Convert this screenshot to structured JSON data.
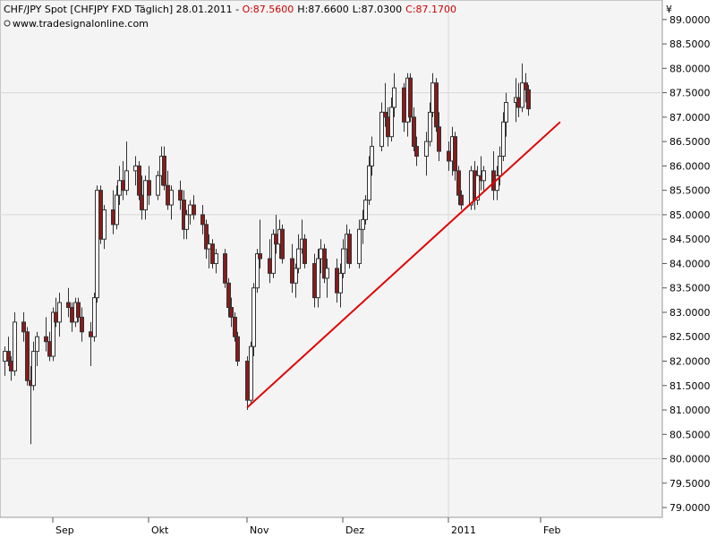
{
  "header": {
    "title_main": "CHF/JPY Spot [CHFJPY FXD  Täglich] 28.01.2011 - ",
    "open": "O:87.5600",
    "high": "H:87.6600",
    "low": "L:87.0300",
    "close": "C:87.1700",
    "source": "www.tradesignalonline.com",
    "currency_symbol": "¥"
  },
  "colors": {
    "background": "#ffffff",
    "plot_bg": "#f4f4f4",
    "grid": "#d8d8d8",
    "candle_up": "#ffffff",
    "candle_down": "#8b1a1a",
    "candle_outline": "#333333",
    "trendline": "#e00000",
    "text_red": "#cc0000",
    "text": "#000000"
  },
  "chart_data": {
    "type": "candlestick",
    "ylim": [
      78.8,
      89.4
    ],
    "y_ticks": [
      "79.0000",
      "79.5000",
      "80.0000",
      "80.5000",
      "81.0000",
      "81.5000",
      "82.0000",
      "82.5000",
      "83.0000",
      "83.5000",
      "84.0000",
      "84.5000",
      "85.0000",
      "85.5000",
      "86.0000",
      "86.5000",
      "87.0000",
      "87.5000",
      "88.0000",
      "88.5000",
      "89.0000"
    ],
    "x_labels": [
      {
        "label": "Sep",
        "date": "2010-09-01"
      },
      {
        "label": "Okt",
        "date": "2010-10-01"
      },
      {
        "label": "Nov",
        "date": "2010-11-01"
      },
      {
        "label": "Dez",
        "date": "2010-12-01"
      },
      {
        "label": "2011",
        "date": "2011-01-03"
      },
      {
        "label": "Feb",
        "date": "2011-02-01"
      }
    ],
    "x_range": [
      "2010-08-17",
      "2011-02-16"
    ],
    "v_grid_date": "2011-01-03",
    "h_grid_values": [
      80.0,
      85.0,
      87.5
    ],
    "trendline": {
      "from": {
        "date": "2010-11-01",
        "value": 81.05
      },
      "to": {
        "date": "2011-02-07",
        "value": 86.9
      }
    },
    "candles": [
      {
        "date": "2010-08-17",
        "o": 82.0,
        "h": 82.3,
        "l": 81.7,
        "c": 82.2
      },
      {
        "date": "2010-08-18",
        "o": 82.2,
        "h": 82.5,
        "l": 81.9,
        "c": 82.0
      },
      {
        "date": "2010-08-19",
        "o": 82.0,
        "h": 82.1,
        "l": 81.6,
        "c": 81.8
      },
      {
        "date": "2010-08-20",
        "o": 81.8,
        "h": 83.0,
        "l": 81.7,
        "c": 82.8
      },
      {
        "date": "2010-08-23",
        "o": 82.8,
        "h": 83.0,
        "l": 82.4,
        "c": 82.6
      },
      {
        "date": "2010-08-24",
        "o": 82.6,
        "h": 82.7,
        "l": 81.5,
        "c": 81.6
      },
      {
        "date": "2010-08-25",
        "o": 81.6,
        "h": 81.9,
        "l": 80.3,
        "c": 81.5
      },
      {
        "date": "2010-08-26",
        "o": 81.5,
        "h": 82.4,
        "l": 81.4,
        "c": 82.2
      },
      {
        "date": "2010-08-27",
        "o": 82.2,
        "h": 82.6,
        "l": 81.9,
        "c": 82.5
      },
      {
        "date": "2010-08-30",
        "o": 82.5,
        "h": 82.9,
        "l": 82.2,
        "c": 82.4
      },
      {
        "date": "2010-08-31",
        "o": 82.4,
        "h": 82.6,
        "l": 82.0,
        "c": 82.1
      },
      {
        "date": "2010-09-01",
        "o": 82.1,
        "h": 83.1,
        "l": 82.0,
        "c": 83.0
      },
      {
        "date": "2010-09-02",
        "o": 83.0,
        "h": 83.3,
        "l": 82.7,
        "c": 82.8
      },
      {
        "date": "2010-09-03",
        "o": 82.8,
        "h": 83.4,
        "l": 82.5,
        "c": 83.2
      },
      {
        "date": "2010-09-06",
        "o": 83.2,
        "h": 83.5,
        "l": 82.9,
        "c": 83.1
      },
      {
        "date": "2010-09-07",
        "o": 83.1,
        "h": 83.2,
        "l": 82.6,
        "c": 82.8
      },
      {
        "date": "2010-09-08",
        "o": 82.8,
        "h": 83.3,
        "l": 82.7,
        "c": 83.2
      },
      {
        "date": "2010-09-09",
        "o": 83.2,
        "h": 83.3,
        "l": 82.8,
        "c": 82.9
      },
      {
        "date": "2010-09-10",
        "o": 82.9,
        "h": 83.1,
        "l": 82.4,
        "c": 82.6
      },
      {
        "date": "2010-09-13",
        "o": 82.6,
        "h": 82.8,
        "l": 81.9,
        "c": 82.5
      },
      {
        "date": "2010-09-14",
        "o": 82.5,
        "h": 83.4,
        "l": 82.4,
        "c": 83.3
      },
      {
        "date": "2010-09-15",
        "o": 83.3,
        "h": 85.6,
        "l": 83.2,
        "c": 85.5
      },
      {
        "date": "2010-09-16",
        "o": 85.5,
        "h": 85.6,
        "l": 84.4,
        "c": 84.5
      },
      {
        "date": "2010-09-17",
        "o": 84.5,
        "h": 85.2,
        "l": 84.3,
        "c": 85.1
      },
      {
        "date": "2010-09-20",
        "o": 85.1,
        "h": 85.5,
        "l": 84.6,
        "c": 84.8
      },
      {
        "date": "2010-09-21",
        "o": 84.8,
        "h": 85.6,
        "l": 84.7,
        "c": 85.4
      },
      {
        "date": "2010-09-22",
        "o": 85.4,
        "h": 86.0,
        "l": 85.2,
        "c": 85.7
      },
      {
        "date": "2010-09-23",
        "o": 85.7,
        "h": 86.1,
        "l": 85.3,
        "c": 85.5
      },
      {
        "date": "2010-09-24",
        "o": 85.5,
        "h": 86.5,
        "l": 85.4,
        "c": 85.9
      },
      {
        "date": "2010-09-27",
        "o": 85.9,
        "h": 86.2,
        "l": 85.6,
        "c": 86.0
      },
      {
        "date": "2010-09-28",
        "o": 86.0,
        "h": 86.1,
        "l": 85.3,
        "c": 85.4
      },
      {
        "date": "2010-09-29",
        "o": 85.4,
        "h": 85.8,
        "l": 84.9,
        "c": 85.1
      },
      {
        "date": "2010-09-30",
        "o": 85.1,
        "h": 85.8,
        "l": 84.9,
        "c": 85.7
      },
      {
        "date": "2010-10-01",
        "o": 85.7,
        "h": 86.0,
        "l": 85.2,
        "c": 85.4
      },
      {
        "date": "2010-10-04",
        "o": 85.4,
        "h": 85.9,
        "l": 85.3,
        "c": 85.8
      },
      {
        "date": "2010-10-05",
        "o": 85.8,
        "h": 86.4,
        "l": 85.6,
        "c": 86.2
      },
      {
        "date": "2010-10-06",
        "o": 86.2,
        "h": 86.4,
        "l": 85.5,
        "c": 85.6
      },
      {
        "date": "2010-10-07",
        "o": 85.6,
        "h": 85.9,
        "l": 85.1,
        "c": 85.2
      },
      {
        "date": "2010-10-08",
        "o": 85.2,
        "h": 85.6,
        "l": 84.9,
        "c": 85.5
      },
      {
        "date": "2010-10-11",
        "o": 85.5,
        "h": 85.7,
        "l": 85.1,
        "c": 85.3
      },
      {
        "date": "2010-10-12",
        "o": 85.3,
        "h": 85.5,
        "l": 84.5,
        "c": 84.7
      },
      {
        "date": "2010-10-13",
        "o": 84.7,
        "h": 85.1,
        "l": 84.5,
        "c": 85.0
      },
      {
        "date": "2010-10-14",
        "o": 85.0,
        "h": 85.3,
        "l": 84.8,
        "c": 85.2
      },
      {
        "date": "2010-10-15",
        "o": 85.2,
        "h": 85.4,
        "l": 84.9,
        "c": 85.0
      },
      {
        "date": "2010-10-18",
        "o": 85.0,
        "h": 85.2,
        "l": 84.6,
        "c": 84.8
      },
      {
        "date": "2010-10-19",
        "o": 84.8,
        "h": 84.9,
        "l": 84.1,
        "c": 84.3
      },
      {
        "date": "2010-10-20",
        "o": 84.3,
        "h": 84.6,
        "l": 83.9,
        "c": 84.4
      },
      {
        "date": "2010-10-21",
        "o": 84.4,
        "h": 84.5,
        "l": 83.9,
        "c": 84.0
      },
      {
        "date": "2010-10-22",
        "o": 84.0,
        "h": 84.3,
        "l": 83.8,
        "c": 84.2
      },
      {
        "date": "2010-10-25",
        "o": 84.2,
        "h": 84.3,
        "l": 83.5,
        "c": 83.6
      },
      {
        "date": "2010-10-26",
        "o": 83.6,
        "h": 83.7,
        "l": 82.9,
        "c": 83.1
      },
      {
        "date": "2010-10-27",
        "o": 83.1,
        "h": 83.3,
        "l": 82.7,
        "c": 82.9
      },
      {
        "date": "2010-10-28",
        "o": 82.9,
        "h": 83.0,
        "l": 82.4,
        "c": 82.5
      },
      {
        "date": "2010-10-29",
        "o": 82.5,
        "h": 82.6,
        "l": 81.9,
        "c": 82.0
      },
      {
        "date": "2010-11-01",
        "o": 82.0,
        "h": 82.1,
        "l": 81.0,
        "c": 81.2
      },
      {
        "date": "2010-11-02",
        "o": 81.2,
        "h": 82.4,
        "l": 81.1,
        "c": 82.3
      },
      {
        "date": "2010-11-03",
        "o": 82.3,
        "h": 83.6,
        "l": 82.1,
        "c": 83.5
      },
      {
        "date": "2010-11-04",
        "o": 83.5,
        "h": 84.3,
        "l": 83.4,
        "c": 84.2
      },
      {
        "date": "2010-11-05",
        "o": 84.2,
        "h": 84.9,
        "l": 83.9,
        "c": 84.1
      },
      {
        "date": "2010-11-08",
        "o": 84.1,
        "h": 84.5,
        "l": 83.6,
        "c": 83.8
      },
      {
        "date": "2010-11-09",
        "o": 83.8,
        "h": 84.7,
        "l": 83.7,
        "c": 84.6
      },
      {
        "date": "2010-11-10",
        "o": 84.6,
        "h": 85.0,
        "l": 84.2,
        "c": 84.4
      },
      {
        "date": "2010-11-11",
        "o": 84.4,
        "h": 84.9,
        "l": 84.1,
        "c": 84.7
      },
      {
        "date": "2010-11-12",
        "o": 84.7,
        "h": 84.8,
        "l": 84.0,
        "c": 84.1
      },
      {
        "date": "2010-11-15",
        "o": 84.1,
        "h": 84.4,
        "l": 83.4,
        "c": 83.6
      },
      {
        "date": "2010-11-16",
        "o": 83.6,
        "h": 84.0,
        "l": 83.3,
        "c": 83.9
      },
      {
        "date": "2010-11-17",
        "o": 83.9,
        "h": 84.6,
        "l": 83.8,
        "c": 84.3
      },
      {
        "date": "2010-11-18",
        "o": 84.3,
        "h": 84.9,
        "l": 84.2,
        "c": 84.5
      },
      {
        "date": "2010-11-19",
        "o": 84.5,
        "h": 84.6,
        "l": 83.9,
        "c": 84.0
      },
      {
        "date": "2010-11-22",
        "o": 84.0,
        "h": 84.2,
        "l": 83.1,
        "c": 83.3
      },
      {
        "date": "2010-11-23",
        "o": 83.3,
        "h": 84.3,
        "l": 83.1,
        "c": 84.1
      },
      {
        "date": "2010-11-24",
        "o": 84.1,
        "h": 84.5,
        "l": 83.8,
        "c": 84.3
      },
      {
        "date": "2010-11-25",
        "o": 84.3,
        "h": 84.4,
        "l": 83.6,
        "c": 83.7
      },
      {
        "date": "2010-11-26",
        "o": 83.7,
        "h": 84.1,
        "l": 83.3,
        "c": 83.9
      },
      {
        "date": "2010-11-29",
        "o": 83.9,
        "h": 84.1,
        "l": 83.2,
        "c": 83.4
      },
      {
        "date": "2010-11-30",
        "o": 83.4,
        "h": 84.0,
        "l": 83.1,
        "c": 83.8
      },
      {
        "date": "2010-12-01",
        "o": 83.8,
        "h": 84.5,
        "l": 83.7,
        "c": 84.3
      },
      {
        "date": "2010-12-02",
        "o": 84.3,
        "h": 84.8,
        "l": 84.0,
        "c": 84.6
      },
      {
        "date": "2010-12-03",
        "o": 84.6,
        "h": 84.7,
        "l": 83.9,
        "c": 84.0
      },
      {
        "date": "2010-12-06",
        "o": 84.0,
        "h": 84.9,
        "l": 83.9,
        "c": 84.7
      },
      {
        "date": "2010-12-07",
        "o": 84.7,
        "h": 85.1,
        "l": 84.4,
        "c": 84.9
      },
      {
        "date": "2010-12-08",
        "o": 84.9,
        "h": 85.4,
        "l": 84.8,
        "c": 85.3
      },
      {
        "date": "2010-12-09",
        "o": 85.3,
        "h": 86.2,
        "l": 85.2,
        "c": 86.0
      },
      {
        "date": "2010-12-10",
        "o": 86.0,
        "h": 86.6,
        "l": 85.8,
        "c": 86.4
      },
      {
        "date": "2010-12-13",
        "o": 86.4,
        "h": 87.3,
        "l": 86.3,
        "c": 87.1
      },
      {
        "date": "2010-12-14",
        "o": 87.1,
        "h": 87.7,
        "l": 86.8,
        "c": 87.0
      },
      {
        "date": "2010-12-15",
        "o": 87.0,
        "h": 87.2,
        "l": 86.4,
        "c": 86.6
      },
      {
        "date": "2010-12-16",
        "o": 86.6,
        "h": 87.4,
        "l": 86.5,
        "c": 87.2
      },
      {
        "date": "2010-12-17",
        "o": 87.2,
        "h": 87.9,
        "l": 87.0,
        "c": 87.6
      },
      {
        "date": "2010-12-20",
        "o": 87.6,
        "h": 87.7,
        "l": 86.7,
        "c": 86.9
      },
      {
        "date": "2010-12-21",
        "o": 86.9,
        "h": 87.9,
        "l": 86.6,
        "c": 87.8
      },
      {
        "date": "2010-12-22",
        "o": 87.8,
        "h": 87.9,
        "l": 86.9,
        "c": 87.0
      },
      {
        "date": "2010-12-23",
        "o": 87.0,
        "h": 87.2,
        "l": 86.3,
        "c": 86.4
      },
      {
        "date": "2010-12-24",
        "o": 86.4,
        "h": 86.6,
        "l": 86.0,
        "c": 86.2
      },
      {
        "date": "2010-12-27",
        "o": 86.2,
        "h": 86.7,
        "l": 85.8,
        "c": 86.5
      },
      {
        "date": "2010-12-28",
        "o": 86.5,
        "h": 87.3,
        "l": 86.4,
        "c": 87.1
      },
      {
        "date": "2010-12-29",
        "o": 87.1,
        "h": 87.9,
        "l": 87.0,
        "c": 87.7
      },
      {
        "date": "2010-12-30",
        "o": 87.7,
        "h": 87.8,
        "l": 86.7,
        "c": 86.8
      },
      {
        "date": "2010-12-31",
        "o": 86.8,
        "h": 87.1,
        "l": 86.1,
        "c": 86.3
      },
      {
        "date": "2011-01-03",
        "o": 86.3,
        "h": 86.5,
        "l": 85.9,
        "c": 86.1
      },
      {
        "date": "2011-01-04",
        "o": 86.1,
        "h": 86.8,
        "l": 85.8,
        "c": 86.6
      },
      {
        "date": "2011-01-05",
        "o": 86.6,
        "h": 86.7,
        "l": 85.7,
        "c": 85.9
      },
      {
        "date": "2011-01-06",
        "o": 85.9,
        "h": 86.0,
        "l": 85.2,
        "c": 85.4
      },
      {
        "date": "2011-01-07",
        "o": 85.4,
        "h": 85.5,
        "l": 85.1,
        "c": 85.2
      },
      {
        "date": "2011-01-10",
        "o": 85.2,
        "h": 86.0,
        "l": 85.1,
        "c": 85.9
      },
      {
        "date": "2011-01-11",
        "o": 85.9,
        "h": 86.1,
        "l": 85.1,
        "c": 85.3
      },
      {
        "date": "2011-01-12",
        "o": 85.3,
        "h": 86.0,
        "l": 85.2,
        "c": 85.8
      },
      {
        "date": "2011-01-13",
        "o": 85.8,
        "h": 86.2,
        "l": 85.5,
        "c": 85.7
      },
      {
        "date": "2011-01-14",
        "o": 85.7,
        "h": 86.0,
        "l": 85.5,
        "c": 85.9
      },
      {
        "date": "2011-01-17",
        "o": 85.9,
        "h": 86.3,
        "l": 85.3,
        "c": 85.5
      },
      {
        "date": "2011-01-18",
        "o": 85.5,
        "h": 86.0,
        "l": 85.3,
        "c": 85.8
      },
      {
        "date": "2011-01-19",
        "o": 85.8,
        "h": 86.4,
        "l": 85.6,
        "c": 86.2
      },
      {
        "date": "2011-01-20",
        "o": 86.2,
        "h": 87.1,
        "l": 86.1,
        "c": 86.9
      },
      {
        "date": "2011-01-21",
        "o": 86.9,
        "h": 87.5,
        "l": 86.6,
        "c": 87.3
      },
      {
        "date": "2011-01-24",
        "o": 87.3,
        "h": 87.8,
        "l": 86.9,
        "c": 87.4
      },
      {
        "date": "2011-01-25",
        "o": 87.4,
        "h": 87.7,
        "l": 87.0,
        "c": 87.2
      },
      {
        "date": "2011-01-26",
        "o": 87.2,
        "h": 88.1,
        "l": 87.1,
        "c": 87.7
      },
      {
        "date": "2011-01-27",
        "o": 87.7,
        "h": 87.9,
        "l": 87.3,
        "c": 87.56
      },
      {
        "date": "2011-01-28",
        "o": 87.56,
        "h": 87.66,
        "l": 87.03,
        "c": 87.17
      }
    ]
  }
}
